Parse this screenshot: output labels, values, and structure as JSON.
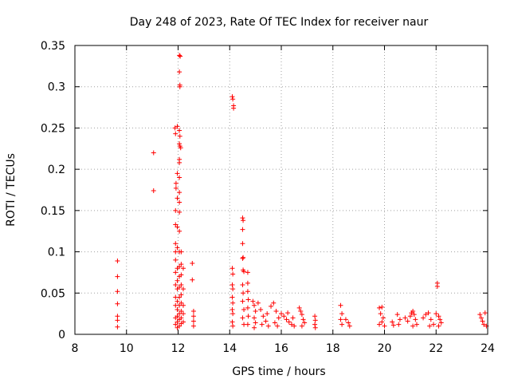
{
  "chart_data": {
    "type": "scatter",
    "title": "Day 248 of 2023, Rate Of TEC Index for receiver naur",
    "xlabel": "GPS time / hours",
    "ylabel": "ROTI / TECUs",
    "xlim": [
      8,
      24
    ],
    "ylim": [
      0,
      0.35
    ],
    "xticks": [
      8,
      10,
      12,
      14,
      16,
      18,
      20,
      22,
      24
    ],
    "yticks": [
      0,
      0.05,
      0.1,
      0.15,
      0.2,
      0.25,
      0.3,
      0.35
    ],
    "xtick_labels": [
      "8",
      "10",
      "12",
      "14",
      "16",
      "18",
      "20",
      "22",
      "24"
    ],
    "ytick_labels": [
      "0",
      "0.05",
      "0.1",
      "0.15",
      "0.2",
      "0.25",
      "0.3",
      "0.35"
    ],
    "grid": true,
    "marker": "plus",
    "color": "#ff0000",
    "series": [
      {
        "name": "ROTI",
        "points": [
          [
            9.65,
            0.089
          ],
          [
            9.65,
            0.07
          ],
          [
            9.65,
            0.052
          ],
          [
            9.65,
            0.037
          ],
          [
            9.65,
            0.022
          ],
          [
            9.65,
            0.017
          ],
          [
            9.65,
            0.009
          ],
          [
            11.05,
            0.22
          ],
          [
            11.05,
            0.174
          ],
          [
            11.88,
            0.25
          ],
          [
            11.9,
            0.243
          ],
          [
            11.92,
            0.183
          ],
          [
            11.92,
            0.177
          ],
          [
            11.9,
            0.15
          ],
          [
            11.9,
            0.133
          ],
          [
            11.9,
            0.11
          ],
          [
            11.9,
            0.1
          ],
          [
            11.9,
            0.09
          ],
          [
            11.9,
            0.075
          ],
          [
            11.9,
            0.06
          ],
          [
            11.9,
            0.045
          ],
          [
            11.9,
            0.035
          ],
          [
            11.9,
            0.02
          ],
          [
            11.9,
            0.012
          ],
          [
            11.97,
            0.252
          ],
          [
            11.97,
            0.195
          ],
          [
            11.97,
            0.165
          ],
          [
            11.97,
            0.13
          ],
          [
            11.97,
            0.105
          ],
          [
            11.97,
            0.08
          ],
          [
            11.97,
            0.065
          ],
          [
            11.97,
            0.055
          ],
          [
            11.97,
            0.04
          ],
          [
            11.97,
            0.03
          ],
          [
            11.97,
            0.022
          ],
          [
            11.97,
            0.015
          ],
          [
            11.97,
            0.008
          ],
          [
            12.05,
            0.338
          ],
          [
            12.08,
            0.337
          ],
          [
            12.05,
            0.318
          ],
          [
            12.07,
            0.3
          ],
          [
            12.07,
            0.302
          ],
          [
            12.05,
            0.247
          ],
          [
            12.07,
            0.24
          ],
          [
            12.05,
            0.231
          ],
          [
            12.07,
            0.228
          ],
          [
            12.1,
            0.226
          ],
          [
            12.05,
            0.212
          ],
          [
            12.05,
            0.208
          ],
          [
            12.05,
            0.19
          ],
          [
            12.05,
            0.172
          ],
          [
            12.05,
            0.16
          ],
          [
            12.05,
            0.148
          ],
          [
            12.05,
            0.125
          ],
          [
            12.05,
            0.1
          ],
          [
            12.05,
            0.082
          ],
          [
            12.05,
            0.07
          ],
          [
            12.05,
            0.057
          ],
          [
            12.05,
            0.045
          ],
          [
            12.05,
            0.035
          ],
          [
            12.05,
            0.025
          ],
          [
            12.05,
            0.018
          ],
          [
            12.05,
            0.01
          ],
          [
            12.12,
            0.1
          ],
          [
            12.12,
            0.085
          ],
          [
            12.12,
            0.072
          ],
          [
            12.12,
            0.06
          ],
          [
            12.12,
            0.048
          ],
          [
            12.12,
            0.038
          ],
          [
            12.12,
            0.028
          ],
          [
            12.12,
            0.02
          ],
          [
            12.12,
            0.013
          ],
          [
            12.2,
            0.08
          ],
          [
            12.2,
            0.055
          ],
          [
            12.2,
            0.035
          ],
          [
            12.2,
            0.025
          ],
          [
            12.2,
            0.015
          ],
          [
            12.55,
            0.086
          ],
          [
            12.55,
            0.066
          ],
          [
            12.6,
            0.028
          ],
          [
            12.6,
            0.022
          ],
          [
            12.6,
            0.016
          ],
          [
            12.6,
            0.01
          ],
          [
            14.1,
            0.288
          ],
          [
            14.12,
            0.285
          ],
          [
            14.15,
            0.277
          ],
          [
            14.15,
            0.274
          ],
          [
            14.1,
            0.08
          ],
          [
            14.12,
            0.073
          ],
          [
            14.1,
            0.06
          ],
          [
            14.12,
            0.055
          ],
          [
            14.1,
            0.045
          ],
          [
            14.12,
            0.038
          ],
          [
            14.1,
            0.03
          ],
          [
            14.12,
            0.025
          ],
          [
            14.1,
            0.015
          ],
          [
            14.12,
            0.01
          ],
          [
            14.5,
            0.141
          ],
          [
            14.52,
            0.138
          ],
          [
            14.5,
            0.127
          ],
          [
            14.5,
            0.11
          ],
          [
            14.52,
            0.093
          ],
          [
            14.5,
            0.092
          ],
          [
            14.52,
            0.078
          ],
          [
            14.55,
            0.076
          ],
          [
            14.5,
            0.06
          ],
          [
            14.52,
            0.05
          ],
          [
            14.5,
            0.04
          ],
          [
            14.55,
            0.03
          ],
          [
            14.5,
            0.02
          ],
          [
            14.55,
            0.012
          ],
          [
            14.7,
            0.075
          ],
          [
            14.7,
            0.062
          ],
          [
            14.7,
            0.052
          ],
          [
            14.72,
            0.042
          ],
          [
            14.7,
            0.032
          ],
          [
            14.72,
            0.022
          ],
          [
            14.7,
            0.012
          ],
          [
            14.9,
            0.04
          ],
          [
            14.95,
            0.035
          ],
          [
            15.0,
            0.028
          ],
          [
            14.95,
            0.02
          ],
          [
            15.0,
            0.014
          ],
          [
            14.95,
            0.008
          ],
          [
            15.1,
            0.038
          ],
          [
            15.2,
            0.03
          ],
          [
            15.3,
            0.022
          ],
          [
            15.4,
            0.016
          ],
          [
            15.5,
            0.01
          ],
          [
            15.25,
            0.012
          ],
          [
            15.45,
            0.025
          ],
          [
            15.6,
            0.034
          ],
          [
            15.7,
            0.038
          ],
          [
            15.8,
            0.028
          ],
          [
            15.9,
            0.02
          ],
          [
            15.75,
            0.014
          ],
          [
            15.85,
            0.01
          ],
          [
            16.0,
            0.025
          ],
          [
            16.1,
            0.022
          ],
          [
            16.2,
            0.018
          ],
          [
            16.3,
            0.015
          ],
          [
            16.4,
            0.012
          ],
          [
            16.5,
            0.01
          ],
          [
            16.25,
            0.026
          ],
          [
            16.45,
            0.02
          ],
          [
            16.7,
            0.032
          ],
          [
            16.75,
            0.028
          ],
          [
            16.8,
            0.024
          ],
          [
            16.85,
            0.018
          ],
          [
            16.9,
            0.014
          ],
          [
            16.8,
            0.01
          ],
          [
            17.3,
            0.022
          ],
          [
            17.32,
            0.017
          ],
          [
            17.3,
            0.012
          ],
          [
            17.32,
            0.008
          ],
          [
            18.3,
            0.035
          ],
          [
            18.35,
            0.025
          ],
          [
            18.3,
            0.018
          ],
          [
            18.35,
            0.012
          ],
          [
            18.5,
            0.018
          ],
          [
            18.6,
            0.014
          ],
          [
            18.65,
            0.01
          ],
          [
            19.8,
            0.032
          ],
          [
            19.9,
            0.033
          ],
          [
            19.85,
            0.025
          ],
          [
            19.95,
            0.02
          ],
          [
            19.9,
            0.015
          ],
          [
            20.0,
            0.01
          ],
          [
            19.8,
            0.012
          ],
          [
            20.3,
            0.015
          ],
          [
            20.35,
            0.011
          ],
          [
            20.5,
            0.024
          ],
          [
            20.6,
            0.018
          ],
          [
            20.55,
            0.012
          ],
          [
            20.8,
            0.02
          ],
          [
            20.9,
            0.016
          ],
          [
            21.0,
            0.022
          ],
          [
            21.05,
            0.026
          ],
          [
            21.1,
            0.028
          ],
          [
            21.15,
            0.024
          ],
          [
            21.2,
            0.018
          ],
          [
            21.25,
            0.012
          ],
          [
            21.1,
            0.01
          ],
          [
            21.5,
            0.02
          ],
          [
            21.6,
            0.024
          ],
          [
            21.7,
            0.026
          ],
          [
            21.8,
            0.018
          ],
          [
            21.9,
            0.012
          ],
          [
            21.75,
            0.01
          ],
          [
            22.05,
            0.062
          ],
          [
            22.05,
            0.058
          ],
          [
            22.0,
            0.025
          ],
          [
            22.1,
            0.022
          ],
          [
            22.15,
            0.018
          ],
          [
            22.2,
            0.014
          ],
          [
            22.1,
            0.01
          ],
          [
            23.7,
            0.024
          ],
          [
            23.75,
            0.02
          ],
          [
            23.8,
            0.016
          ],
          [
            23.85,
            0.012
          ],
          [
            23.9,
            0.026
          ],
          [
            23.95,
            0.01
          ]
        ]
      }
    ]
  }
}
